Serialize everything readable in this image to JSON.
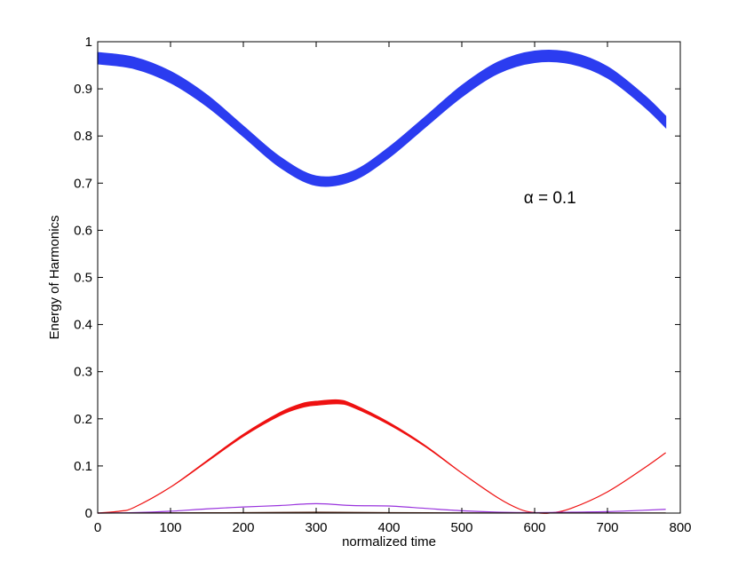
{
  "chart_data": {
    "type": "line",
    "title": "",
    "xlabel": "normalized time",
    "ylabel": "Energy of Harmonics",
    "xlim": [
      0,
      800
    ],
    "ylim": [
      0,
      1
    ],
    "xticks": [
      "0",
      "100",
      "200",
      "300",
      "400",
      "500",
      "600",
      "700",
      "800"
    ],
    "yticks": [
      "0",
      "0.1",
      "0.2",
      "0.3",
      "0.4",
      "0.5",
      "0.6",
      "0.7",
      "0.8",
      "0.9",
      "1"
    ],
    "grid": false,
    "box": true,
    "annotation": {
      "text": "α = 0.1",
      "x": 585,
      "y": 0.67
    },
    "series": [
      {
        "color": "#2b3cf0",
        "x": [
          0,
          50,
          100,
          150,
          200,
          250,
          300,
          350,
          400,
          450,
          500,
          550,
          600,
          650,
          700,
          750,
          780
        ],
        "values": [
          0.965,
          0.955,
          0.925,
          0.875,
          0.81,
          0.745,
          0.705,
          0.715,
          0.765,
          0.83,
          0.895,
          0.945,
          0.968,
          0.965,
          0.935,
          0.875,
          0.83
        ],
        "band": [
          0.012,
          0.012,
          0.012,
          0.012,
          0.011,
          0.011,
          0.01,
          0.01,
          0.011,
          0.011,
          0.012,
          0.012,
          0.012,
          0.012,
          0.012,
          0.012,
          0.012
        ]
      },
      {
        "color": "#ee1111",
        "x": [
          0,
          30,
          50,
          100,
          150,
          200,
          250,
          280,
          300,
          330,
          350,
          400,
          450,
          500,
          550,
          580,
          600,
          620,
          650,
          700,
          750,
          780
        ],
        "values": [
          0,
          0.004,
          0.012,
          0.055,
          0.11,
          0.165,
          0.21,
          0.228,
          0.233,
          0.236,
          0.228,
          0.19,
          0.142,
          0.085,
          0.032,
          0.008,
          0.001,
          0.0,
          0.01,
          0.045,
          0.095,
          0.128
        ],
        "band": [
          0,
          0,
          0,
          0,
          0.001,
          0.002,
          0.003,
          0.004,
          0.004,
          0.004,
          0.003,
          0.002,
          0.001,
          0,
          0,
          0,
          0,
          0,
          0,
          0,
          0,
          0
        ]
      },
      {
        "color": "#9933dd",
        "x": [
          0,
          50,
          100,
          150,
          200,
          250,
          300,
          350,
          400,
          450,
          500,
          550,
          600,
          650,
          700,
          750,
          780
        ],
        "values": [
          0,
          0.001,
          0.004,
          0.009,
          0.013,
          0.016,
          0.02,
          0.016,
          0.015,
          0.01,
          0.005,
          0.002,
          0.001,
          0.002,
          0.003,
          0.006,
          0.008
        ],
        "band": [
          0,
          0,
          0,
          0,
          0,
          0,
          0,
          0,
          0,
          0,
          0,
          0,
          0,
          0,
          0,
          0,
          0
        ]
      },
      {
        "color": "#663322",
        "x": [
          0,
          100,
          200,
          300,
          400,
          500,
          600,
          700,
          780
        ],
        "values": [
          0,
          0.0005,
          0.001,
          0.002,
          0.001,
          0.0005,
          0.0002,
          0.0002,
          0.0003
        ],
        "band": [
          0,
          0,
          0,
          0,
          0,
          0,
          0,
          0,
          0
        ]
      }
    ]
  }
}
